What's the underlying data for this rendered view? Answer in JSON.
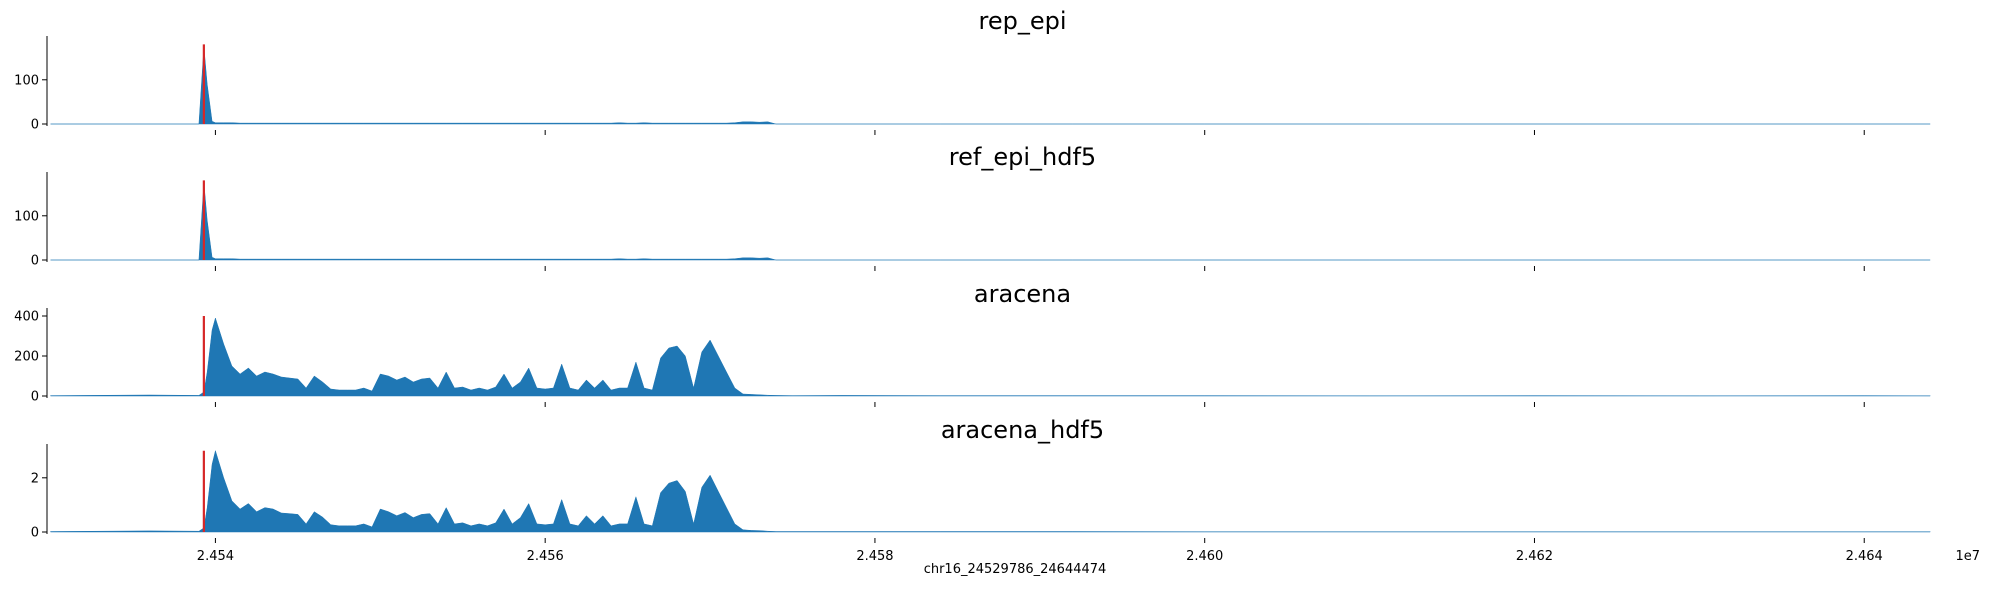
{
  "chart_data": {
    "type": "area",
    "xlabel": "chr16_24529786_24644474",
    "x_offset_label": "1e7",
    "xlim": [
      24529786,
      24644474
    ],
    "x_ticks": [
      24540000,
      24560000,
      24580000,
      24600000,
      24620000,
      24640000
    ],
    "x_tick_labels": [
      "2.454",
      "2.456",
      "2.458",
      "2.460",
      "2.462",
      "2.464"
    ],
    "marker_position": 24539300,
    "colors": {
      "fill": "#1f77b4",
      "marker": "#d62728",
      "axis": "#000000"
    },
    "shared_x_profile": {
      "x": [
        24530000,
        24536000,
        24539000,
        24539300,
        24539500,
        24539800,
        24540000,
        24540500,
        24541000,
        24541500,
        24542000,
        24542500,
        24543000,
        24543500,
        24544000,
        24544500,
        24545000,
        24545500,
        24546000,
        24546500,
        24547000,
        24547500,
        24548000,
        24548500,
        24549000,
        24549500,
        24550000,
        24550500,
        24551000,
        24551500,
        24552000,
        24552500,
        24553000,
        24553500,
        24554000,
        24554500,
        24555000,
        24555500,
        24556000,
        24556500,
        24557000,
        24557500,
        24558000,
        24558500,
        24559000,
        24559500,
        24560000,
        24560500,
        24561000,
        24561500,
        24562000,
        24562500,
        24563000,
        24563500,
        24564000,
        24564500,
        24565000,
        24565500,
        24566000,
        24566500,
        24567000,
        24567500,
        24568000,
        24568500,
        24569000,
        24569500,
        24570000,
        24570500,
        24571000,
        24571500,
        24572000,
        24572500,
        24573000,
        24573500,
        24574000,
        24575000,
        24578000,
        24584000,
        24592000,
        24600000,
        24610000,
        24620000,
        24630000,
        24640000,
        24644000
      ]
    },
    "panels": [
      {
        "title": "rep_epi",
        "y_ticks": [
          0,
          100
        ],
        "ylim": [
          0,
          190
        ],
        "marker_height": 180,
        "values": [
          0,
          0,
          0,
          175,
          90,
          6,
          3,
          3,
          3,
          2,
          2,
          2,
          2,
          2,
          2,
          2,
          2,
          2,
          2,
          2,
          2,
          2,
          2,
          2,
          2,
          2,
          2,
          2,
          2,
          2,
          2,
          2,
          2,
          2,
          2,
          2,
          2,
          2,
          2,
          2,
          2,
          2,
          2,
          2,
          2,
          2,
          2,
          2,
          2,
          2,
          2,
          2,
          2,
          2,
          2,
          3,
          2,
          2,
          3,
          2,
          2,
          2,
          2,
          2,
          2,
          2,
          2,
          2,
          2,
          3,
          5,
          5,
          4,
          5,
          0,
          0,
          0,
          0,
          0,
          0,
          0,
          0,
          0,
          0,
          0
        ]
      },
      {
        "title": "ref_epi_hdf5",
        "y_ticks": [
          0,
          100
        ],
        "ylim": [
          0,
          190
        ],
        "marker_height": 180,
        "values": [
          0,
          0,
          0,
          175,
          90,
          6,
          3,
          3,
          3,
          2,
          2,
          2,
          2,
          2,
          2,
          2,
          2,
          2,
          2,
          2,
          2,
          2,
          2,
          2,
          2,
          2,
          2,
          2,
          2,
          2,
          2,
          2,
          2,
          2,
          2,
          2,
          2,
          2,
          2,
          2,
          2,
          2,
          2,
          2,
          2,
          2,
          2,
          2,
          2,
          2,
          2,
          2,
          2,
          2,
          2,
          3,
          2,
          2,
          3,
          2,
          2,
          2,
          2,
          2,
          2,
          2,
          2,
          2,
          2,
          3,
          5,
          5,
          4,
          5,
          0,
          0,
          0,
          0,
          0,
          0,
          0,
          0,
          0,
          0,
          0
        ]
      },
      {
        "title": "aracena",
        "y_ticks": [
          0,
          200,
          400
        ],
        "ylim": [
          0,
          420
        ],
        "marker_height": 400,
        "values": [
          2,
          5,
          3,
          20,
          120,
          330,
          390,
          260,
          150,
          110,
          140,
          100,
          120,
          110,
          95,
          90,
          85,
          40,
          100,
          70,
          35,
          30,
          30,
          30,
          40,
          25,
          110,
          100,
          80,
          95,
          70,
          85,
          90,
          40,
          120,
          40,
          45,
          30,
          40,
          30,
          45,
          110,
          40,
          70,
          140,
          40,
          35,
          40,
          160,
          40,
          30,
          80,
          40,
          80,
          30,
          40,
          40,
          170,
          40,
          30,
          190,
          240,
          250,
          200,
          40,
          220,
          280,
          200,
          120,
          40,
          10,
          8,
          6,
          4,
          3,
          2,
          3,
          2,
          2,
          2,
          1,
          2,
          1,
          2,
          1
        ]
      },
      {
        "title": "aracena_hdf5",
        "y_ticks": [
          0,
          2
        ],
        "ylim": [
          0,
          3.1
        ],
        "marker_height": 3.0,
        "values": [
          0.02,
          0.04,
          0.03,
          0.15,
          0.9,
          2.5,
          3.0,
          2.0,
          1.15,
          0.85,
          1.05,
          0.75,
          0.9,
          0.85,
          0.7,
          0.68,
          0.65,
          0.3,
          0.75,
          0.55,
          0.27,
          0.23,
          0.23,
          0.23,
          0.3,
          0.19,
          0.85,
          0.75,
          0.6,
          0.72,
          0.53,
          0.65,
          0.68,
          0.3,
          0.9,
          0.3,
          0.34,
          0.23,
          0.3,
          0.23,
          0.34,
          0.85,
          0.3,
          0.53,
          1.05,
          0.3,
          0.27,
          0.3,
          1.2,
          0.3,
          0.23,
          0.6,
          0.3,
          0.6,
          0.23,
          0.3,
          0.3,
          1.3,
          0.3,
          0.23,
          1.45,
          1.8,
          1.9,
          1.5,
          0.3,
          1.65,
          2.1,
          1.5,
          0.9,
          0.3,
          0.08,
          0.06,
          0.05,
          0.03,
          0.02,
          0.02,
          0.02,
          0.02,
          0.02,
          0.01,
          0.01,
          0.01,
          0.01,
          0.01,
          0.01
        ]
      }
    ]
  }
}
